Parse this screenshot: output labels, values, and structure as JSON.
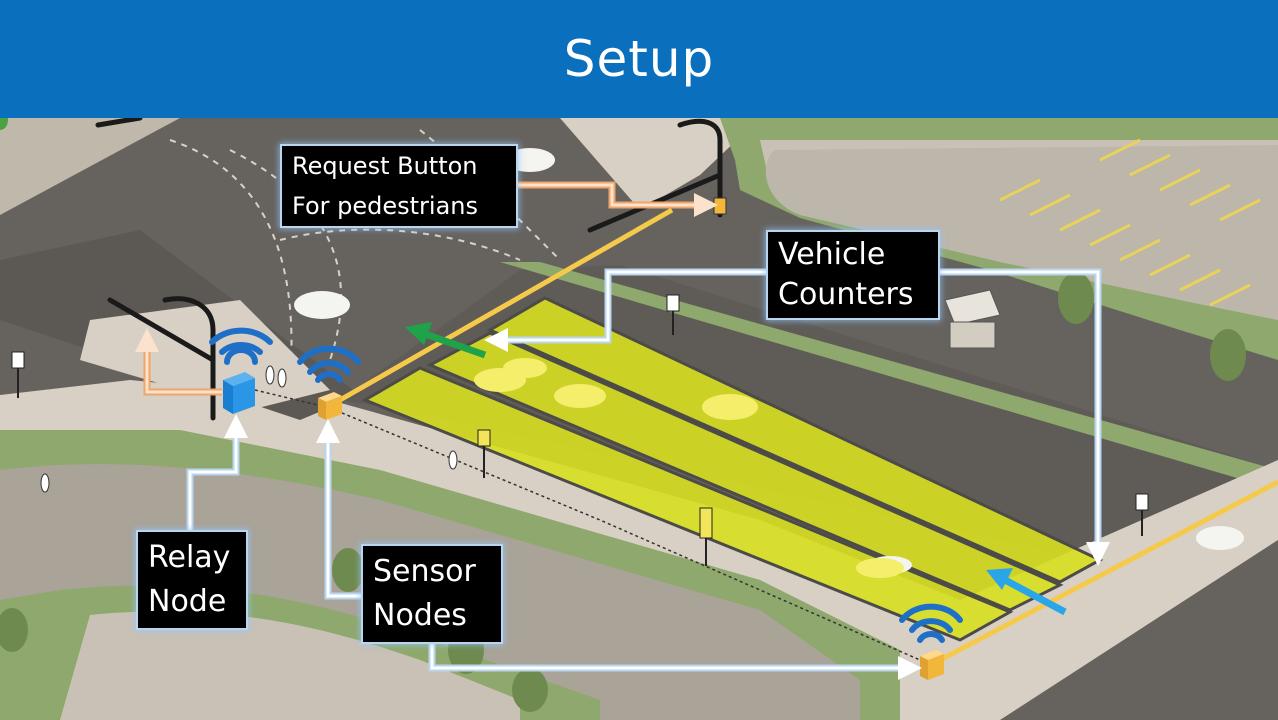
{
  "slide": {
    "title": "Setup"
  },
  "labels": {
    "request_button": [
      "Request Button",
      "For pedestrians"
    ],
    "vehicle_counters": [
      "Vehicle",
      "Counters"
    ],
    "relay_node": [
      "Relay",
      "Node"
    ],
    "sensor_nodes": [
      "Sensor",
      "Nodes"
    ]
  },
  "colors": {
    "header": "#0a6fbd",
    "road": "#6b6864",
    "sidewalk": "#d8d0c4",
    "grass": "#8fa86d",
    "detection_zone": "#d8df20",
    "relay_node": "#1e8fe0",
    "sensor_node": "#f2b63a",
    "wifi": "#1e6fc8",
    "orange_connector": "#f0a66a",
    "white_connector": "#ffffff",
    "green_arrow": "#1ea34a",
    "blue_arrow": "#2aa6e8",
    "crosswalk_line": "#f5c94a"
  }
}
